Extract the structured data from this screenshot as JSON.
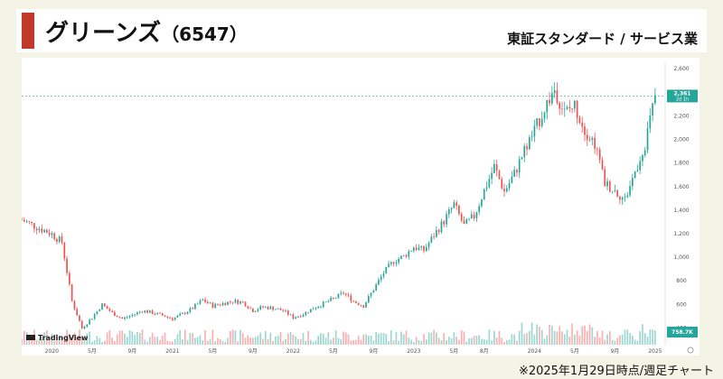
{
  "header": {
    "company": "グリーンズ",
    "code": "（6547）",
    "category": "東証スタンダード / サービス業",
    "accent_color": "#c0392b"
  },
  "footnote": "※2025年1月29日時点/週足チャート",
  "watermark": "TradingView",
  "chart_data": {
    "type": "candlestick",
    "x_ticks": [
      "2020",
      "5月",
      "9月",
      "2021",
      "5月",
      "9月",
      "2022",
      "5月",
      "9月",
      "2023",
      "5月",
      "8月",
      "2024",
      "5月",
      "9月",
      "2025"
    ],
    "y_ticks": [
      400,
      600,
      800,
      "1,000",
      "1,200",
      "1,400",
      "1,600",
      "1,800",
      "2,000",
      "2,200",
      "2,400",
      "2,600"
    ],
    "ylim": [
      250,
      2640
    ],
    "x_start": "2019-10",
    "x_end": "2025-02",
    "last_price": "2,361",
    "last_price_sub": "2d 1h",
    "volume_label": "758.7K",
    "colors": {
      "up": "#26a69a",
      "down": "#ef5350",
      "last": "#26a69a"
    },
    "price_series": [
      [
        "2019-10",
        1310
      ],
      [
        "2019-11",
        1270
      ],
      [
        "2019-12",
        1230
      ],
      [
        "2020-01",
        1190
      ],
      [
        "2020-02",
        1120
      ],
      [
        "2020-03",
        620
      ],
      [
        "2020-04",
        390
      ],
      [
        "2020-05",
        480
      ],
      [
        "2020-06",
        590
      ],
      [
        "2020-07",
        520
      ],
      [
        "2020-08",
        470
      ],
      [
        "2020-09",
        500
      ],
      [
        "2020-10",
        540
      ],
      [
        "2020-11",
        520
      ],
      [
        "2020-12",
        500
      ],
      [
        "2021-01",
        470
      ],
      [
        "2021-02",
        510
      ],
      [
        "2021-03",
        560
      ],
      [
        "2021-04",
        630
      ],
      [
        "2021-05",
        580
      ],
      [
        "2021-06",
        600
      ],
      [
        "2021-07",
        620
      ],
      [
        "2021-08",
        610
      ],
      [
        "2021-09",
        540
      ],
      [
        "2021-10",
        570
      ],
      [
        "2021-11",
        560
      ],
      [
        "2021-12",
        540
      ],
      [
        "2022-01",
        480
      ],
      [
        "2022-02",
        510
      ],
      [
        "2022-03",
        560
      ],
      [
        "2022-04",
        600
      ],
      [
        "2022-05",
        640
      ],
      [
        "2022-06",
        690
      ],
      [
        "2022-07",
        620
      ],
      [
        "2022-08",
        580
      ],
      [
        "2022-09",
        720
      ],
      [
        "2022-10",
        860
      ],
      [
        "2022-11",
        960
      ],
      [
        "2022-12",
        1000
      ],
      [
        "2023-01",
        1080
      ],
      [
        "2023-02",
        1050
      ],
      [
        "2023-03",
        1180
      ],
      [
        "2023-04",
        1300
      ],
      [
        "2023-05",
        1440
      ],
      [
        "2023-06",
        1260
      ],
      [
        "2023-07",
        1340
      ],
      [
        "2023-08",
        1560
      ],
      [
        "2023-09",
        1760
      ],
      [
        "2023-10",
        1550
      ],
      [
        "2023-11",
        1700
      ],
      [
        "2023-12",
        1900
      ],
      [
        "2024-01",
        2060
      ],
      [
        "2024-02",
        2260
      ],
      [
        "2024-03",
        2420
      ],
      [
        "2024-04",
        2220
      ],
      [
        "2024-05",
        2280
      ],
      [
        "2024-06",
        2080
      ],
      [
        "2024-07",
        1960
      ],
      [
        "2024-08",
        1620
      ],
      [
        "2024-09",
        1560
      ],
      [
        "2024-10",
        1480
      ],
      [
        "2024-11",
        1720
      ],
      [
        "2024-12",
        1960
      ],
      [
        "2025-01",
        2361
      ]
    ]
  }
}
